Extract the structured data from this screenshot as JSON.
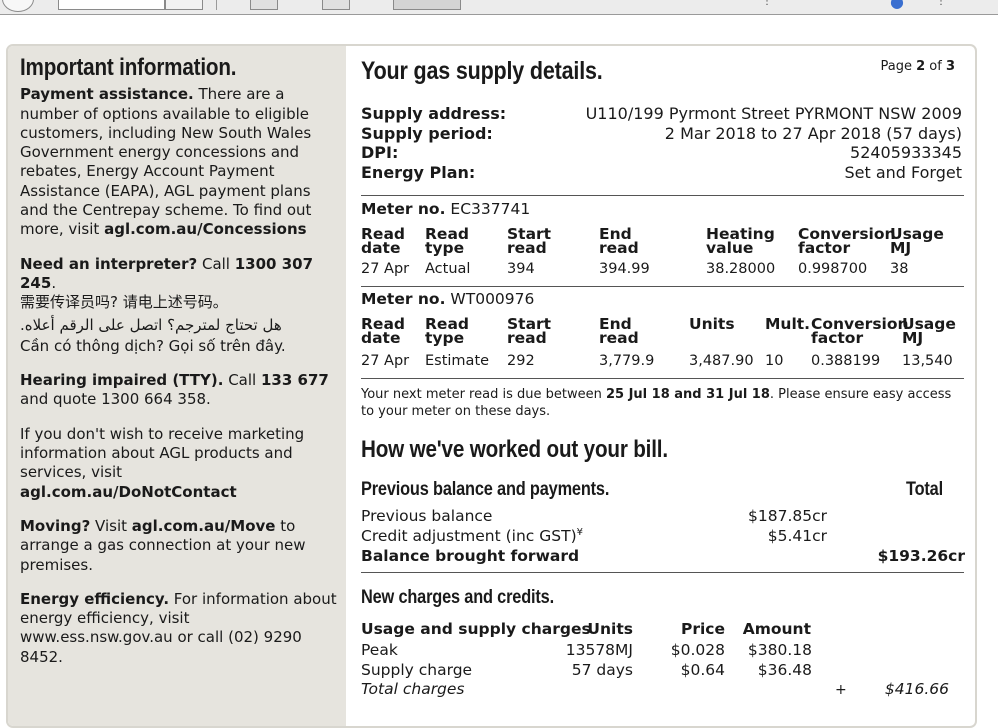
{
  "left": {
    "heading": "Important information.",
    "payment": {
      "bold": "Payment assistance.",
      "text": " There are a number of options available to eligible customers, including New South Wales Government energy concessions and rebates, Energy Account Payment Assistance (EAPA), AGL payment plans and the Centrepay scheme. To find out more, visit ",
      "link": "agl.com.au/Concessions"
    },
    "interpreter": {
      "bold": "Need an interpreter?",
      "text": " Call ",
      "phone": "1300 307 245",
      "dot": ".",
      "chinese": "需要传译员吗? 请电上述号码。",
      "arabic": "هل تحتاج لمترجم؟ اتصل على الرقم أعلاه.",
      "vietnamese": "Cần có thông dịch? Gọi số trên đây."
    },
    "hearing": {
      "bold": "Hearing impaired (TTY).",
      "text": " Call ",
      "phone": "133 677",
      "text2": " and quote 1300 664 358."
    },
    "marketing": {
      "text": "If you don't wish to receive marketing information about AGL products and services, visit ",
      "link": "agl.com.au/DoNotContact"
    },
    "moving": {
      "bold": "Moving?",
      "text": " Visit ",
      "link": "agl.com.au/Move",
      "text2": " to arrange a gas connection at your new premises."
    },
    "efficiency": {
      "bold": "Energy efficiency.",
      "text": " For information about energy efficiency, visit www.ess.nsw.gov.au or call (02) 9290 8452."
    }
  },
  "right": {
    "heading": "Your gas supply details.",
    "page": {
      "prefix": "Page ",
      "current": "2",
      "of": " of ",
      "total": "3"
    },
    "supply": [
      {
        "key": "Supply address:",
        "value": "U110/199 Pyrmont Street PYRMONT NSW 2009"
      },
      {
        "key": "Supply period:",
        "value": "2 Mar 2018 to 27 Apr 2018 (57 days)"
      },
      {
        "key": "DPI:",
        "value": "52405933345"
      },
      {
        "key": "Energy Plan:",
        "value": "Set and Forget"
      }
    ],
    "meter1": {
      "label": "Meter no.",
      "number": " EC337741",
      "headers": [
        [
          "Read",
          "date"
        ],
        [
          "Read",
          "type"
        ],
        [
          "Start",
          "read"
        ],
        [
          "End",
          "read"
        ],
        [
          "Heating",
          "value"
        ],
        [
          "Conversion",
          "factor"
        ],
        [
          "Usage",
          "MJ"
        ]
      ],
      "row": [
        "27 Apr",
        "Actual",
        "394",
        "394.99",
        "38.28000",
        "0.998700",
        "38"
      ]
    },
    "meter2": {
      "label": "Meter no.",
      "number": " WT000976",
      "headers": [
        [
          "Read",
          "date"
        ],
        [
          "Read",
          "type"
        ],
        [
          "Start",
          "read"
        ],
        [
          "End",
          "read"
        ],
        [
          "Units",
          ""
        ],
        [
          "Mult.",
          ""
        ],
        [
          "Conversion",
          "factor"
        ],
        [
          "Usage",
          "MJ"
        ]
      ],
      "row": [
        "27 Apr",
        "Estimate",
        "292",
        "3,779.9",
        "3,487.90",
        "10",
        "0.388199",
        "13,540"
      ]
    },
    "note": {
      "t1": "Your next meter read is due between ",
      "dates": "25 Jul 18 and 31 Jul 18",
      "t2": ". Please ensure easy access to your meter on these days."
    },
    "bill_heading": "How we've worked out your bill.",
    "previous": {
      "heading": "Previous balance and payments.",
      "total_label": "Total",
      "rows": [
        {
          "label": "Previous balance",
          "amount": "$187.85cr"
        },
        {
          "label": "Credit adjustment (inc GST)",
          "sup": "¥",
          "amount": "$5.41cr"
        }
      ],
      "forward_label": "Balance brought forward",
      "forward_total": "$193.26cr"
    },
    "charges": {
      "heading": "New charges and credits.",
      "cols": [
        "Usage and supply charges",
        "Units",
        "Price",
        "Amount"
      ],
      "rows": [
        {
          "label": "Peak",
          "units": "13578MJ",
          "price": "$0.028",
          "amount": "$380.18"
        },
        {
          "label": "Supply charge",
          "units": "57 days",
          "price": "$0.64",
          "amount": "$36.48"
        }
      ],
      "total_label": "Total charges",
      "plus": "+",
      "total": "$416.66"
    }
  }
}
